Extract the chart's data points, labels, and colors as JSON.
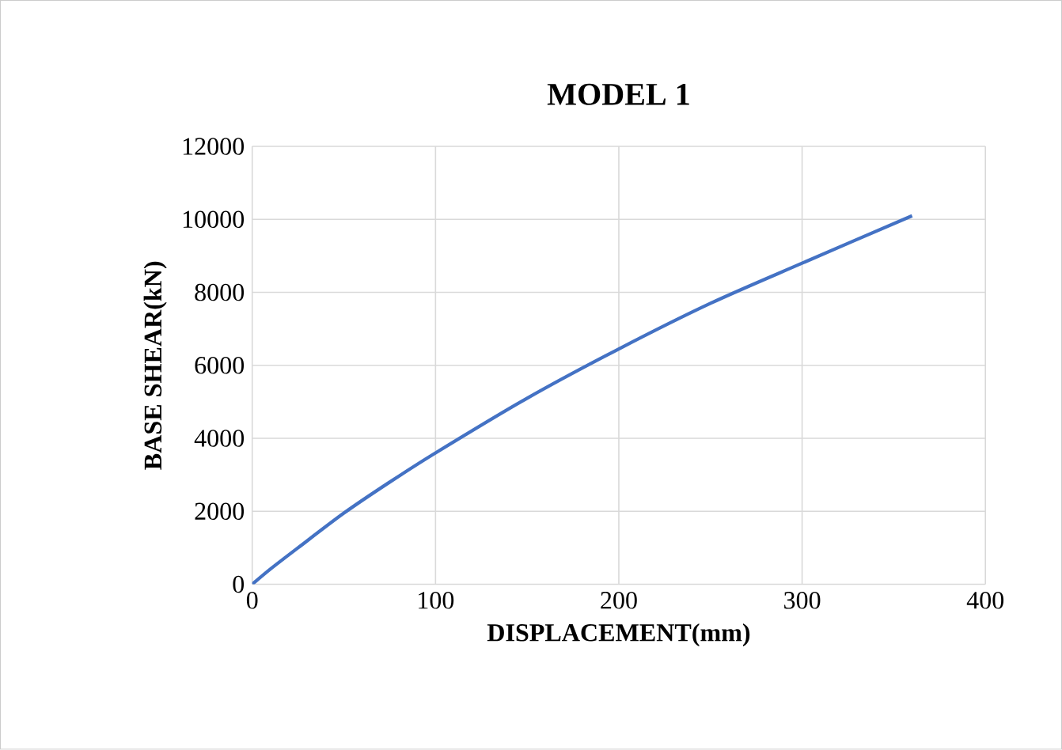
{
  "chart_data": {
    "type": "line",
    "title": "MODEL 1",
    "xlabel": "DISPLACEMENT(mm)",
    "ylabel": "BASE SHEAR(kN)",
    "x": [
      0,
      10,
      25,
      50,
      75,
      100,
      150,
      200,
      250,
      300,
      360
    ],
    "series": [
      {
        "color": "#4472c4",
        "values": [
          0,
          420,
          1000,
          1950,
          2800,
          3600,
          5100,
          6450,
          7700,
          8800,
          10100
        ]
      }
    ],
    "xlim": [
      0,
      400
    ],
    "xticks": [
      0,
      100,
      200,
      300,
      400
    ],
    "ylim": [
      0,
      12000
    ],
    "yticks": [
      0,
      2000,
      4000,
      6000,
      8000,
      10000,
      12000
    ],
    "grid": true,
    "legend": false,
    "marker": "none",
    "line_style": "solid"
  }
}
